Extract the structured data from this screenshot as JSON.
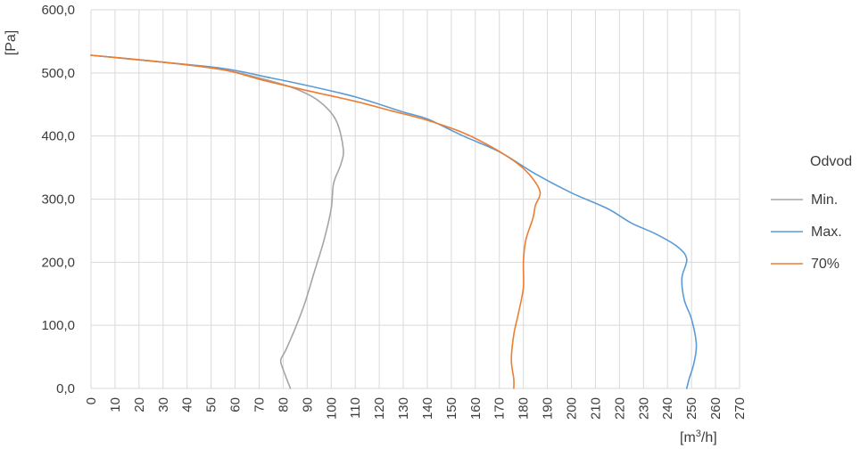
{
  "chart_data": {
    "type": "line",
    "title": "",
    "xlabel_base": "[m",
    "xlabel_sup": "3",
    "xlabel_end": "/h]",
    "ylabel": "[Pa]",
    "xlim": [
      0,
      270
    ],
    "ylim": [
      0,
      600
    ],
    "x_ticks": [
      0,
      10,
      20,
      30,
      40,
      50,
      60,
      70,
      80,
      90,
      100,
      110,
      120,
      130,
      140,
      150,
      160,
      170,
      180,
      190,
      200,
      210,
      220,
      230,
      240,
      250,
      260,
      270
    ],
    "x_tick_labels": [
      "0",
      "10",
      "20",
      "30",
      "40",
      "50",
      "60",
      "70",
      "80",
      "90",
      "100",
      "110",
      "120",
      "130",
      "140",
      "150",
      "160",
      "170",
      "180",
      "190",
      "200",
      "210",
      "220",
      "230",
      "240",
      "250",
      "260",
      "270"
    ],
    "y_ticks": [
      0,
      100,
      200,
      300,
      400,
      500,
      600
    ],
    "y_tick_labels": [
      "0,0",
      "100,0",
      "200,0",
      "300,0",
      "400,0",
      "500,0",
      "600,0"
    ],
    "grid": true,
    "legend": {
      "title": "Odvod",
      "position": "right"
    },
    "series": [
      {
        "name": "Min.",
        "color": "#a5a5a5",
        "points": [
          [
            0,
            528
          ],
          [
            30,
            517
          ],
          [
            55,
            505
          ],
          [
            72,
            490
          ],
          [
            85,
            475
          ],
          [
            95,
            455
          ],
          [
            102,
            425
          ],
          [
            105,
            380
          ],
          [
            104,
            355
          ],
          [
            101,
            325
          ],
          [
            100,
            285
          ],
          [
            97,
            235
          ],
          [
            93,
            185
          ],
          [
            89,
            135
          ],
          [
            85,
            95
          ],
          [
            81,
            60
          ],
          [
            79,
            45
          ],
          [
            80,
            30
          ],
          [
            82,
            10
          ],
          [
            83,
            0
          ]
        ]
      },
      {
        "name": "Max.",
        "color": "#5b9bd5",
        "points": [
          [
            0,
            528
          ],
          [
            30,
            517
          ],
          [
            55,
            507
          ],
          [
            75,
            492
          ],
          [
            90,
            480
          ],
          [
            110,
            462
          ],
          [
            130,
            438
          ],
          [
            140,
            427
          ],
          [
            155,
            400
          ],
          [
            170,
            375
          ],
          [
            185,
            340
          ],
          [
            200,
            310
          ],
          [
            215,
            285
          ],
          [
            225,
            262
          ],
          [
            235,
            245
          ],
          [
            244,
            225
          ],
          [
            248,
            205
          ],
          [
            246,
            175
          ],
          [
            247,
            140
          ],
          [
            250,
            110
          ],
          [
            252,
            70
          ],
          [
            251,
            40
          ],
          [
            249,
            15
          ],
          [
            248,
            0
          ]
        ]
      },
      {
        "name": "70%",
        "color": "#ed7d31",
        "points": [
          [
            0,
            528
          ],
          [
            30,
            517
          ],
          [
            55,
            505
          ],
          [
            72,
            488
          ],
          [
            90,
            472
          ],
          [
            110,
            455
          ],
          [
            125,
            440
          ],
          [
            140,
            425
          ],
          [
            155,
            405
          ],
          [
            168,
            380
          ],
          [
            178,
            355
          ],
          [
            184,
            332
          ],
          [
            187,
            310
          ],
          [
            185,
            290
          ],
          [
            184,
            270
          ],
          [
            181,
            235
          ],
          [
            180,
            200
          ],
          [
            180,
            160
          ],
          [
            178,
            120
          ],
          [
            176,
            85
          ],
          [
            175,
            45
          ],
          [
            176,
            15
          ],
          [
            176,
            0
          ]
        ]
      }
    ]
  }
}
